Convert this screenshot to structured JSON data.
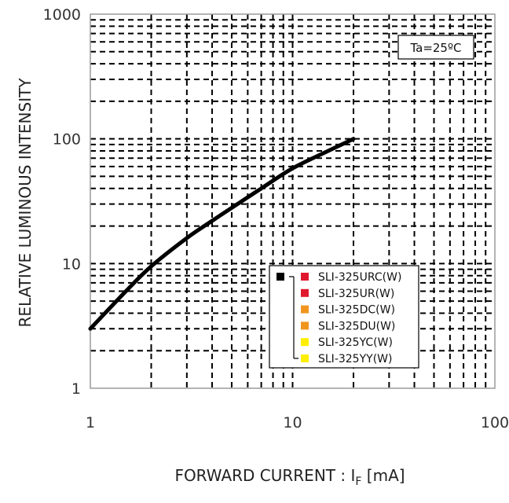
{
  "chart_data": {
    "type": "line",
    "scale": "log-log",
    "xlim": [
      1,
      100
    ],
    "ylim": [
      1,
      1000
    ],
    "x_ticks": [
      "1",
      "10",
      "100"
    ],
    "y_ticks": [
      "1",
      "10",
      "100",
      "1000"
    ],
    "xlabel": {
      "main": "FORWARD CURRENT : I",
      "sub": "F",
      "unit": " [mA]"
    },
    "ylabel": "RELATIVE LUMINOUS INTENSITY",
    "grid": "dashed major and minor",
    "annotation": "Ta=25ºC",
    "series": [
      {
        "x": [
          1,
          1.5,
          2,
          3,
          4,
          5,
          7,
          10,
          15,
          20
        ],
        "y": [
          3,
          6,
          9.5,
          16,
          22,
          28,
          40,
          58,
          80,
          100
        ],
        "color": "#000000"
      }
    ],
    "legend": {
      "placement": "lower-right",
      "entries": [
        {
          "label": "SLI-325URC(W)",
          "color": "#e0182d"
        },
        {
          "label": "SLI-325UR(W)",
          "color": "#e0182d"
        },
        {
          "label": "SLI-325DC(W)",
          "color": "#f0961e"
        },
        {
          "label": "SLI-325DU(W)",
          "color": "#f0961e"
        },
        {
          "label": "SLI-325YC(W)",
          "color": "#ffee00"
        },
        {
          "label": "SLI-325YY(W)",
          "color": "#ffee00"
        }
      ],
      "curve_marker_color": "#000000"
    }
  }
}
